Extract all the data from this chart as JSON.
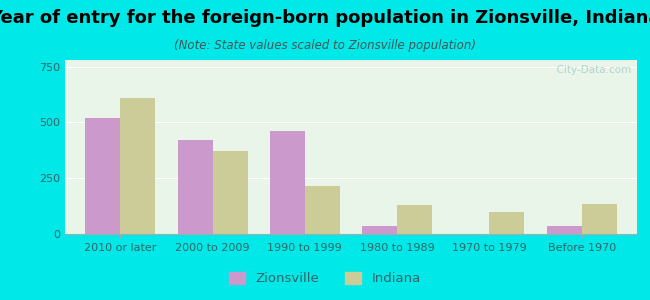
{
  "title": "Year of entry for the foreign-born population in Zionsville, Indiana",
  "subtitle": "(Note: State values scaled to Zionsville population)",
  "categories": [
    "2010 or later",
    "2000 to 2009",
    "1990 to 1999",
    "1980 to 1989",
    "1970 to 1979",
    "Before 1970"
  ],
  "zionsville": [
    520,
    420,
    460,
    35,
    0,
    35
  ],
  "indiana": [
    610,
    370,
    215,
    130,
    100,
    135
  ],
  "zionsville_color": "#cc99cc",
  "indiana_color": "#cccc99",
  "background_outer": "#00e8e8",
  "background_inner_top": "#e8f5e8",
  "background_inner_bottom": "#d8f0e8",
  "ylim": [
    0,
    780
  ],
  "yticks": [
    0,
    250,
    500,
    750
  ],
  "bar_width": 0.38,
  "title_fontsize": 13,
  "subtitle_fontsize": 8.5,
  "tick_fontsize": 8,
  "legend_fontsize": 9.5,
  "watermark": "  City-Data.com"
}
